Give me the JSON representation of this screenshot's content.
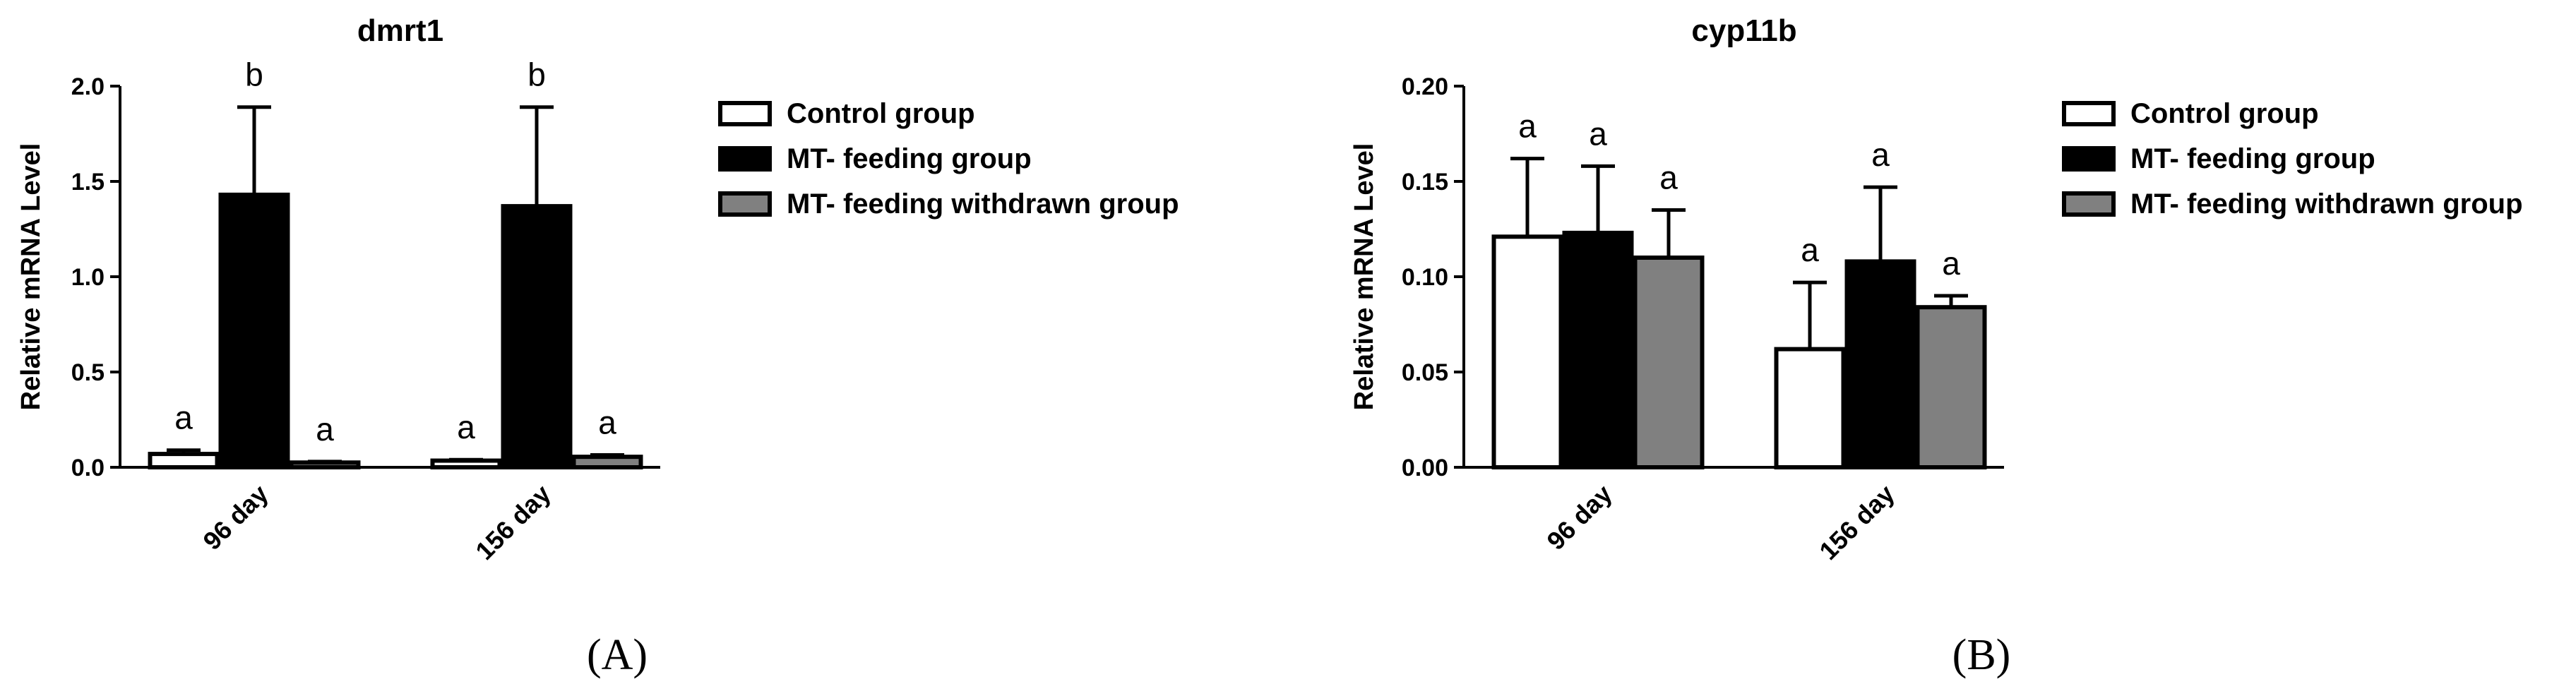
{
  "chart_data": [
    {
      "type": "bar",
      "panel_label": "(A)",
      "title": "dmrt1",
      "xlabel": "",
      "ylabel": "Relative mRNA Level",
      "ylim": [
        0,
        2.0
      ],
      "yticks": [
        "0.0",
        "0.5",
        "1.0",
        "1.5",
        "2.0"
      ],
      "categories": [
        "96 day",
        "156 day"
      ],
      "series": [
        {
          "name": "Control group",
          "values": [
            0.07,
            0.035
          ],
          "errors": [
            0.02,
            0.005
          ],
          "letters": [
            "a",
            "a"
          ],
          "color": "#ffffff"
        },
        {
          "name": "MT- feeding group",
          "values": [
            1.43,
            1.37
          ],
          "errors": [
            0.46,
            0.52
          ],
          "letters": [
            "b",
            "b"
          ],
          "color": "#000000"
        },
        {
          "name": "MT- feeding withdrawn group",
          "values": [
            0.025,
            0.055
          ],
          "errors": [
            0.005,
            0.01
          ],
          "letters": [
            "a",
            "a"
          ],
          "color": "#808080"
        }
      ],
      "legend_position": "right"
    },
    {
      "type": "bar",
      "panel_label": "(B)",
      "title": "cyp11b",
      "xlabel": "",
      "ylabel": "Relative mRNA Level",
      "ylim": [
        0,
        0.2
      ],
      "yticks": [
        "0.00",
        "0.05",
        "0.10",
        "0.15",
        "0.20"
      ],
      "categories": [
        "96 day",
        "156 day"
      ],
      "series": [
        {
          "name": "Control group",
          "values": [
            0.121,
            0.062
          ],
          "errors": [
            0.041,
            0.035
          ],
          "letters": [
            "a",
            "a"
          ],
          "color": "#ffffff"
        },
        {
          "name": "MT- feeding group",
          "values": [
            0.123,
            0.108
          ],
          "errors": [
            0.035,
            0.039
          ],
          "letters": [
            "a",
            "a"
          ],
          "color": "#000000"
        },
        {
          "name": "MT- feeding withdrawn group",
          "values": [
            0.11,
            0.084
          ],
          "errors": [
            0.025,
            0.006
          ],
          "letters": [
            "a",
            "a"
          ],
          "color": "#808080"
        }
      ],
      "legend_position": "right"
    }
  ]
}
